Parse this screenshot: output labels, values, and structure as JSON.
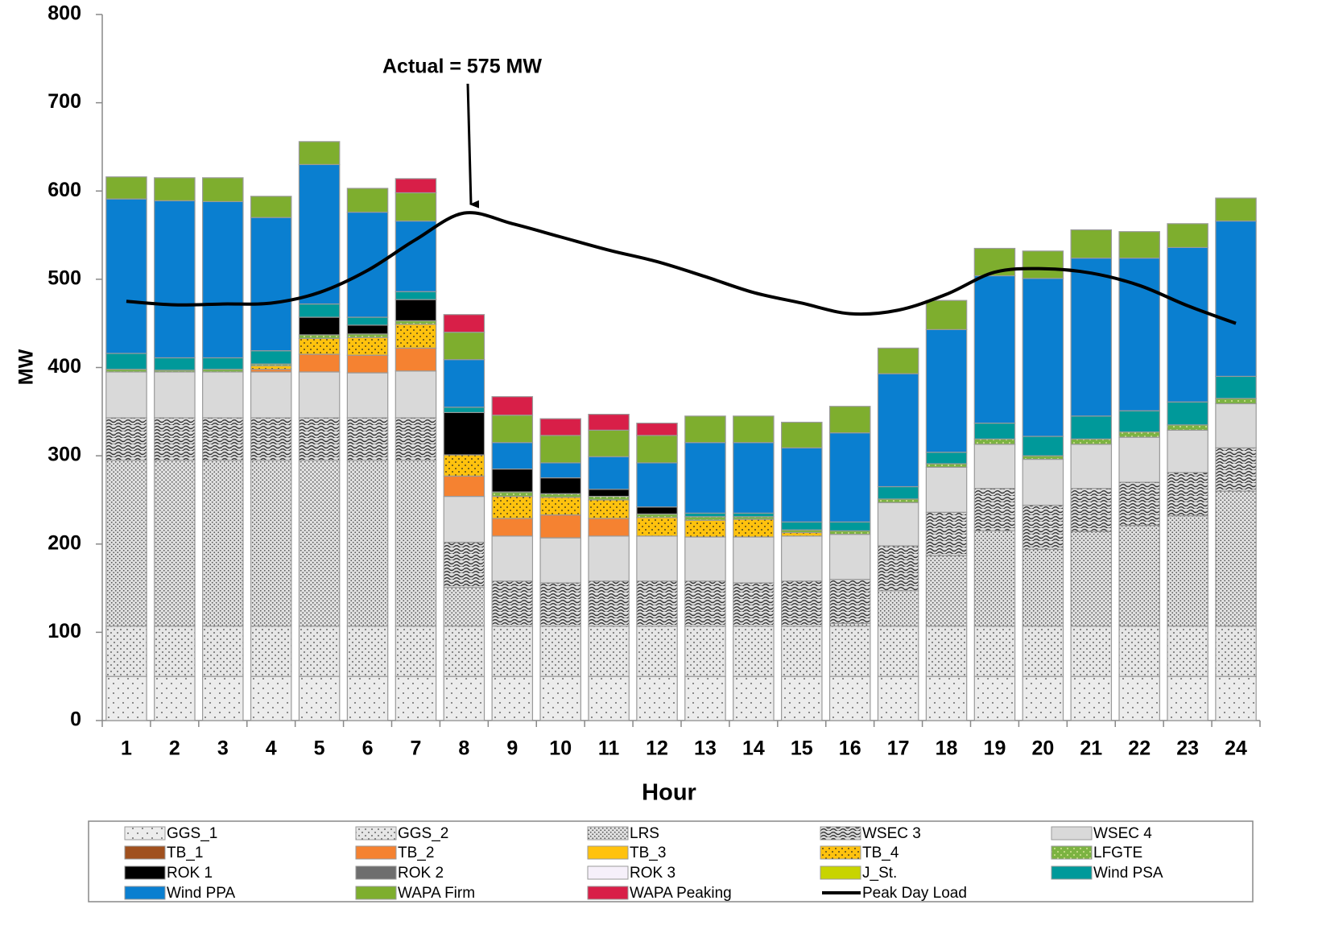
{
  "chart_data": {
    "type": "stacked-bar",
    "x_label": "Hour",
    "y_label": "MW",
    "annotation": "Actual = 575 MW",
    "categories": [
      "1",
      "2",
      "3",
      "4",
      "5",
      "6",
      "7",
      "8",
      "9",
      "10",
      "11",
      "12",
      "13",
      "14",
      "15",
      "16",
      "17",
      "18",
      "19",
      "20",
      "21",
      "22",
      "23",
      "24"
    ],
    "ylim": [
      0,
      800
    ],
    "yticks": [
      0,
      100,
      200,
      300,
      400,
      500,
      600,
      700,
      800
    ],
    "series": [
      {
        "name": "GGS_1",
        "color": "#ececec",
        "pattern": "sparse-dots",
        "pattern_color": "#444",
        "values": [
          50,
          50,
          50,
          50,
          50,
          50,
          50,
          50,
          50,
          50,
          50,
          50,
          50,
          50,
          50,
          50,
          50,
          50,
          50,
          50,
          50,
          50,
          50,
          50
        ]
      },
      {
        "name": "GGS_2",
        "color": "#e6e6e6",
        "pattern": "dots",
        "pattern_color": "#444",
        "values": [
          57,
          57,
          57,
          57,
          57,
          57,
          57,
          57,
          57,
          57,
          57,
          57,
          57,
          57,
          57,
          57,
          57,
          57,
          57,
          57,
          57,
          57,
          57,
          57
        ]
      },
      {
        "name": "LRS",
        "color": "#e0e0e0",
        "pattern": "dense-dots",
        "pattern_color": "#555",
        "values": [
          188,
          188,
          188,
          188,
          188,
          188,
          188,
          44,
          0,
          0,
          0,
          0,
          0,
          0,
          0,
          3,
          40,
          80,
          108,
          87,
          107,
          114,
          125,
          153
        ]
      },
      {
        "name": "WSEC 3",
        "color": "#dcdcdc",
        "pattern": "waves",
        "pattern_color": "#333",
        "values": [
          48,
          48,
          48,
          48,
          48,
          48,
          48,
          51,
          51,
          49,
          51,
          51,
          51,
          49,
          51,
          50,
          51,
          49,
          48,
          50,
          49,
          49,
          49,
          49
        ]
      },
      {
        "name": "WSEC 4",
        "color": "#d9d9d9",
        "values": [
          52,
          52,
          52,
          52,
          52,
          51,
          53,
          52,
          51,
          51,
          51,
          51,
          50,
          52,
          51,
          51,
          49,
          51,
          50,
          52,
          50,
          51,
          48,
          50
        ]
      },
      {
        "name": "TB_1",
        "color": "#a0501e",
        "values": [
          0,
          0,
          0,
          0,
          0,
          0,
          0,
          0,
          0,
          0,
          0,
          0,
          0,
          0,
          0,
          0,
          0,
          0,
          0,
          0,
          0,
          0,
          0,
          0
        ]
      },
      {
        "name": "TB_2",
        "color": "#f58231",
        "values": [
          0,
          0,
          0,
          3,
          20,
          20,
          26,
          23,
          20,
          26,
          20,
          0,
          0,
          0,
          0,
          0,
          0,
          0,
          0,
          0,
          0,
          0,
          0,
          0
        ]
      },
      {
        "name": "TB_3",
        "color": "#ffc20e",
        "values": [
          0,
          0,
          0,
          0,
          0,
          0,
          0,
          0,
          0,
          0,
          0,
          0,
          0,
          0,
          0,
          0,
          0,
          0,
          0,
          0,
          0,
          0,
          0,
          0
        ]
      },
      {
        "name": "TB_4",
        "color": "#ffc20e",
        "pattern": "dots",
        "pattern_color": "#222",
        "values": [
          0,
          0,
          0,
          4,
          18,
          20,
          27,
          24,
          25,
          20,
          21,
          21,
          19,
          20,
          4,
          0,
          0,
          0,
          0,
          0,
          0,
          0,
          0,
          0
        ]
      },
      {
        "name": "LFGTE",
        "color": "#7cb342",
        "pattern": "dots",
        "pattern_color": "#f0f5b0",
        "values": [
          3,
          2,
          3,
          2,
          4,
          4,
          4,
          0,
          5,
          4,
          4,
          4,
          4,
          3,
          3,
          4,
          4,
          4,
          6,
          4,
          6,
          6,
          6,
          6
        ]
      },
      {
        "name": "ROK 1",
        "color": "#000000",
        "values": [
          0,
          0,
          0,
          0,
          20,
          10,
          24,
          48,
          26,
          18,
          8,
          8,
          0,
          0,
          0,
          0,
          0,
          0,
          0,
          0,
          0,
          0,
          0,
          0
        ]
      },
      {
        "name": "ROK 2",
        "color": "#6e6e6e",
        "values": [
          0,
          0,
          0,
          0,
          0,
          0,
          0,
          0,
          0,
          0,
          0,
          0,
          0,
          0,
          0,
          0,
          0,
          0,
          0,
          0,
          0,
          0,
          0,
          0
        ]
      },
      {
        "name": "ROK 3",
        "color": "#f6f0fa",
        "values": [
          0,
          0,
          0,
          0,
          0,
          0,
          0,
          0,
          0,
          0,
          0,
          0,
          0,
          0,
          0,
          0,
          0,
          0,
          0,
          0,
          0,
          0,
          0,
          0
        ]
      },
      {
        "name": "J_St.",
        "color": "#c8d400",
        "values": [
          0,
          0,
          0,
          0,
          0,
          0,
          0,
          0,
          0,
          0,
          0,
          0,
          0,
          0,
          0,
          0,
          0,
          0,
          0,
          0,
          0,
          0,
          0,
          0
        ]
      },
      {
        "name": "Wind PSA",
        "color": "#00999a",
        "values": [
          18,
          14,
          13,
          15,
          15,
          9,
          9,
          6,
          0,
          0,
          0,
          0,
          4,
          4,
          9,
          10,
          14,
          13,
          18,
          22,
          26,
          24,
          26,
          25
        ]
      },
      {
        "name": "Wind PPA",
        "color": "#0a7fd0",
        "values": [
          175,
          178,
          177,
          151,
          158,
          119,
          80,
          54,
          30,
          17,
          37,
          50,
          80,
          80,
          84,
          101,
          128,
          139,
          167,
          179,
          179,
          173,
          175,
          176
        ]
      },
      {
        "name": "WAPA Firm",
        "color": "#7eae2e",
        "values": [
          25,
          26,
          27,
          24,
          26,
          27,
          32,
          31,
          31,
          31,
          30,
          31,
          30,
          30,
          29,
          30,
          29,
          33,
          31,
          31,
          32,
          30,
          27,
          26
        ]
      },
      {
        "name": "WAPA Peaking",
        "color": "#d81f48",
        "values": [
          0,
          0,
          0,
          0,
          0,
          0,
          16,
          20,
          21,
          19,
          18,
          14,
          0,
          0,
          0,
          0,
          0,
          0,
          0,
          0,
          0,
          0,
          0,
          0
        ]
      }
    ],
    "line": {
      "name": "Peak Day Load",
      "color": "#000000",
      "values": [
        475,
        471,
        472,
        473,
        485,
        510,
        545,
        575,
        563,
        548,
        533,
        520,
        503,
        485,
        473,
        461,
        465,
        483,
        508,
        512,
        507,
        493,
        470,
        450
      ]
    }
  }
}
